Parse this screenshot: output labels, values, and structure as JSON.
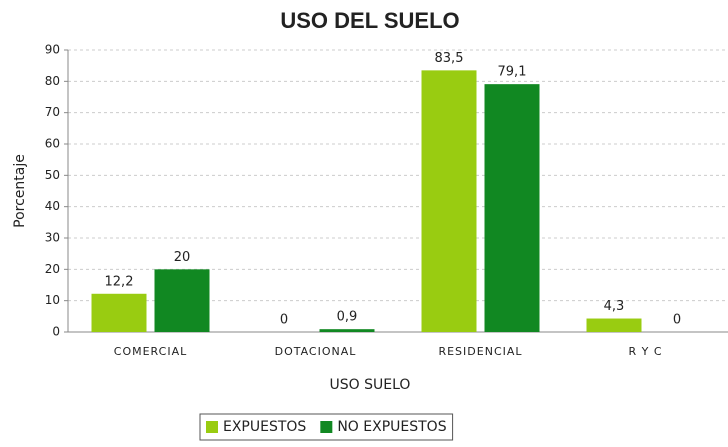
{
  "chart_data": {
    "type": "bar",
    "title": "USO DEL SUELO",
    "x_label": "USO SUELO",
    "y_label": "Porcentaje",
    "categories": [
      "COMERCIAL",
      "DOTACIONAL",
      "RESIDENCIAL",
      "R Y C"
    ],
    "series": [
      {
        "name": "EXPUESTOS",
        "color": "#99cc11",
        "values": [
          12.2,
          0,
          83.5,
          4.3
        ],
        "value_labels": [
          "12,2",
          "0",
          "83,5",
          "4,3"
        ]
      },
      {
        "name": "NO EXPUESTOS",
        "color": "#118822",
        "values": [
          20,
          0.9,
          79.1,
          0
        ],
        "value_labels": [
          "20",
          "0,9",
          "79,1",
          "0"
        ]
      }
    ],
    "ylim": [
      0,
      90
    ],
    "yticks": [
      0,
      10,
      20,
      30,
      40,
      50,
      60,
      70,
      80,
      90
    ],
    "grid": true,
    "legend": "bottom"
  }
}
